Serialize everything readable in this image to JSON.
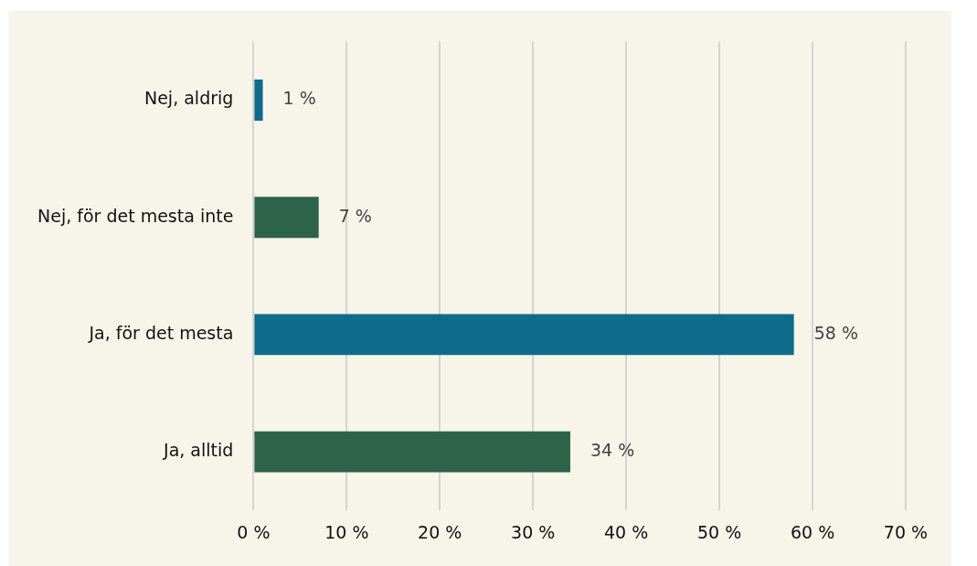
{
  "chart_data": {
    "type": "bar",
    "orientation": "horizontal",
    "categories": [
      "Nej, aldrig",
      "Nej, för det mesta inte",
      "Ja, för det mesta",
      "Ja, alltid"
    ],
    "values": [
      1,
      7,
      58,
      34
    ],
    "colors": [
      "#0e6b8c",
      "#2d6349",
      "#0e6b8c",
      "#2d6349"
    ],
    "value_labels": [
      "1 %",
      "7 %",
      "58 %",
      "34 %"
    ],
    "xlim": [
      0,
      70
    ],
    "xticks": [
      {
        "value": 0,
        "label": "0 %"
      },
      {
        "value": 10,
        "label": "10 %"
      },
      {
        "value": 20,
        "label": "20 %"
      },
      {
        "value": 30,
        "label": "30 %"
      },
      {
        "value": 40,
        "label": "40 %"
      },
      {
        "value": 50,
        "label": "50 %"
      },
      {
        "value": 60,
        "label": "60 %"
      },
      {
        "value": 70,
        "label": "70 %"
      }
    ],
    "grid": "x",
    "legend": false
  }
}
